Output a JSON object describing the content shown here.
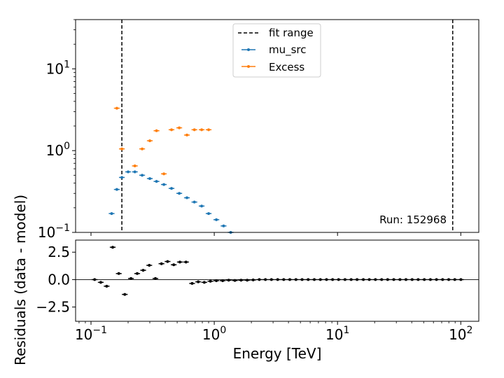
{
  "chart_data": [
    {
      "type": "scatter",
      "panel": "top",
      "xscale": "log",
      "yscale": "log",
      "xlim": [
        0.075,
        140
      ],
      "ylim": [
        0.1,
        40
      ],
      "ylabel": "",
      "yticks": [
        0.1,
        1,
        10
      ],
      "yticklabels": [
        "10−1",
        "10⁰",
        "10¹"
      ],
      "vlines": [
        {
          "name": "fit range",
          "x": 0.178,
          "style": "dashed",
          "color": "#000000"
        },
        {
          "name": "fit range",
          "x": 86,
          "style": "dashed",
          "color": "#000000"
        }
      ],
      "series": [
        {
          "name": "mu_src",
          "color": "#1f77b4",
          "x": [
            0.147,
            0.162,
            0.178,
            0.2,
            0.227,
            0.26,
            0.3,
            0.34,
            0.39,
            0.45,
            0.52,
            0.6,
            0.69,
            0.79,
            0.9,
            1.04,
            1.19,
            1.36
          ],
          "y": [
            0.17,
            0.335,
            0.47,
            0.55,
            0.55,
            0.5,
            0.455,
            0.42,
            0.385,
            0.345,
            0.3,
            0.265,
            0.235,
            0.21,
            0.17,
            0.143,
            0.12,
            0.1
          ]
        },
        {
          "name": "Excess",
          "color": "#ff7f0e",
          "x": [
            0.162,
            0.178,
            0.227,
            0.26,
            0.3,
            0.34,
            0.39,
            0.45,
            0.52,
            0.6,
            0.69,
            0.79,
            0.9
          ],
          "y": [
            3.3,
            1.05,
            0.65,
            1.05,
            1.32,
            1.75,
            0.52,
            1.8,
            1.9,
            1.55,
            1.8,
            1.8,
            1.8
          ]
        }
      ],
      "legend": {
        "position": "upper-center",
        "entries": [
          "fit range",
          "mu_src",
          "Excess"
        ]
      },
      "annotation": "Run: 152968"
    },
    {
      "type": "scatter",
      "panel": "bottom",
      "xscale": "log",
      "xlim": [
        0.075,
        140
      ],
      "ylim": [
        -3.8,
        3.6
      ],
      "xlabel": "Energy [TeV]",
      "ylabel": "Residuals (data - model)",
      "xticks": [
        0.1,
        1,
        10,
        100
      ],
      "xticklabels": [
        "10−1",
        "10⁰",
        "10¹",
        "10²"
      ],
      "yticks": [
        -2.5,
        0.0,
        2.5
      ],
      "yticklabels": [
        "−2.5",
        "0.0",
        "2.5"
      ],
      "zero_line": 0,
      "series": [
        {
          "name": "",
          "color": "#000000",
          "x": [
            0.107,
            0.12,
            0.134,
            0.15,
            0.168,
            0.188,
            0.211,
            0.237,
            0.265,
            0.297,
            0.333,
            0.373,
            0.418,
            0.469,
            0.526,
            0.59,
            0.661,
            0.741,
            0.83,
            0.931,
            1.04,
            1.17,
            1.31,
            1.47,
            1.65,
            1.85,
            2.07,
            2.32,
            2.6,
            2.91,
            3.27,
            3.66,
            4.1,
            4.6,
            5.16,
            5.78,
            6.48,
            7.26,
            8.14,
            9.12,
            10.2,
            11.5,
            12.9,
            14.4,
            16.2,
            18.1,
            20.3,
            22.8,
            25.5,
            28.6,
            32.1,
            35.9,
            40.3,
            45.1,
            50.6,
            56.7,
            63.5,
            71.2,
            79.8,
            89.4,
            100.2
          ],
          "y": [
            0.0,
            -0.25,
            -0.6,
            2.95,
            0.55,
            -1.35,
            0.1,
            0.55,
            0.85,
            1.3,
            0.1,
            1.45,
            1.65,
            1.35,
            1.6,
            1.6,
            -0.35,
            -0.2,
            -0.25,
            -0.15,
            -0.1,
            -0.1,
            -0.05,
            -0.08,
            -0.05,
            -0.05,
            -0.03,
            0.0,
            0.0,
            0.0,
            0.0,
            0.0,
            0.0,
            0.0,
            0.0,
            0.0,
            0.0,
            0.0,
            0.0,
            0.0,
            0.0,
            0.0,
            0.0,
            0.0,
            0.0,
            0.0,
            0.0,
            0.0,
            0.0,
            0.0,
            0.0,
            0.0,
            0.0,
            0.0,
            0.0,
            0.0,
            0.0,
            0.0,
            0.0,
            0.0,
            0.0
          ],
          "xerr_frac": 0.055
        }
      ]
    }
  ]
}
